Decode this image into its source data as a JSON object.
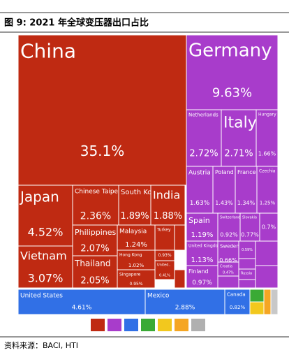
{
  "chart_data": {
    "type": "treemap",
    "title": "图 9: 2021 年全球变压器出口占比",
    "source": "资料来源：BACI, HTI",
    "items": [
      {
        "name": "China",
        "value": 35.1,
        "label": "35.1%",
        "color": "#bf2a12"
      },
      {
        "name": "Germany",
        "value": 9.63,
        "label": "9.63%",
        "color": "#a83ccb"
      },
      {
        "name": "Netherlands",
        "value": 2.72,
        "label": "2.72%",
        "color": "#a83ccb"
      },
      {
        "name": "Italy",
        "value": 2.71,
        "label": "2.71%",
        "color": "#a83ccb"
      },
      {
        "name": "Hungary",
        "value": 1.66,
        "label": "1.66%",
        "color": "#a83ccb"
      },
      {
        "name": "Austria",
        "value": 1.63,
        "label": "1.63%",
        "color": "#a83ccb"
      },
      {
        "name": "Poland",
        "value": 1.43,
        "label": "1.43%",
        "color": "#a83ccb"
      },
      {
        "name": "France",
        "value": 1.34,
        "label": "1.34%",
        "color": "#a83ccb"
      },
      {
        "name": "Czechia",
        "value": 1.25,
        "label": "1.25%",
        "color": "#a83ccb"
      },
      {
        "name": "Spain",
        "value": 1.19,
        "label": "1.19%",
        "color": "#a83ccb"
      },
      {
        "name": "Switzerland",
        "value": 0.92,
        "label": "0.92%",
        "color": "#a83ccb"
      },
      {
        "name": "Slovakia",
        "value": 0.77,
        "label": "0.77%",
        "color": "#a83ccb"
      },
      {
        "value": 0.7,
        "label": "0.7%",
        "color": "#a83ccb"
      },
      {
        "name": "United Kingdom",
        "value": 1.13,
        "label": "1.13%",
        "color": "#a83ccb"
      },
      {
        "name": "Sweden",
        "value": 0.66,
        "label": "0.66%",
        "color": "#a83ccb"
      },
      {
        "value": 0.59,
        "label": "0.59%",
        "color": "#a83ccb"
      },
      {
        "name": "Finland",
        "value": 0.97,
        "label": "0.97%",
        "color": "#a83ccb"
      },
      {
        "name": "Croatia",
        "value": 0.47,
        "label": "0.47%",
        "color": "#a83ccb"
      },
      {
        "name": "Russia",
        "value": 0.45,
        "color": "#a83ccb"
      },
      {
        "name": "Japan",
        "value": 4.52,
        "label": "4.52%",
        "color": "#bf2a12"
      },
      {
        "name": "Vietnam",
        "value": 3.07,
        "label": "3.07%",
        "color": "#bf2a12"
      },
      {
        "name": "Chinese Taipei",
        "value": 2.36,
        "label": "2.36%",
        "color": "#bf2a12"
      },
      {
        "name": "South Korea",
        "value": 1.89,
        "label": "1.89%",
        "color": "#bf2a12"
      },
      {
        "name": "India",
        "value": 1.88,
        "label": "1.88%",
        "color": "#bf2a12"
      },
      {
        "name": "Philippines",
        "value": 2.07,
        "label": "2.07%",
        "color": "#bf2a12"
      },
      {
        "name": "Malaysia",
        "value": 1.24,
        "label": "1.24%",
        "color": "#bf2a12"
      },
      {
        "name": "Turkey",
        "value": 0.9,
        "color": "#bf2a12"
      },
      {
        "name": "Thailand",
        "value": 2.05,
        "label": "2.05%",
        "color": "#bf2a12"
      },
      {
        "name": "Hong Kong",
        "value": 1.02,
        "label": "1.02%",
        "color": "#bf2a12"
      },
      {
        "name": "Singapore",
        "value": 0.95,
        "label": "0.95%",
        "color": "#bf2a12"
      },
      {
        "value": 0.93,
        "label": "0.93%",
        "color": "#bf2a12"
      },
      {
        "name": "United..",
        "value": 0.41,
        "label": "0.41%",
        "color": "#bf2a12"
      },
      {
        "name": "United States",
        "value": 4.61,
        "label": "4.61%",
        "color": "#3170e6"
      },
      {
        "name": "Mexico",
        "value": 2.88,
        "label": "2.88%",
        "color": "#3170e6"
      },
      {
        "name": "Canada",
        "value": 0.82,
        "label": "0.82%",
        "color": "#3170e6"
      }
    ]
  }
}
